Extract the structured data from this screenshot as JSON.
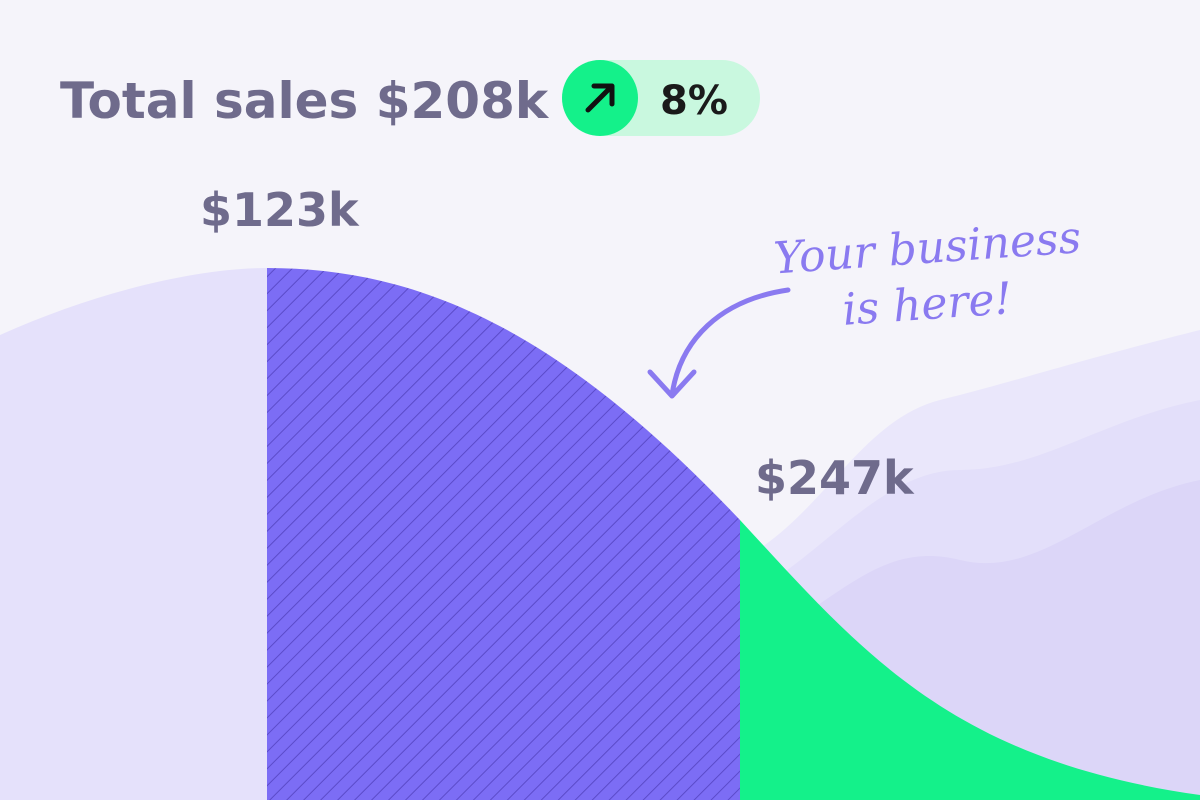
{
  "header": {
    "title": "Total sales $208k",
    "badge": "8%"
  },
  "labels": {
    "peak": "$123k",
    "current": "$247k"
  },
  "annotation": {
    "line1": "Your business",
    "line2": "is here!"
  }
}
